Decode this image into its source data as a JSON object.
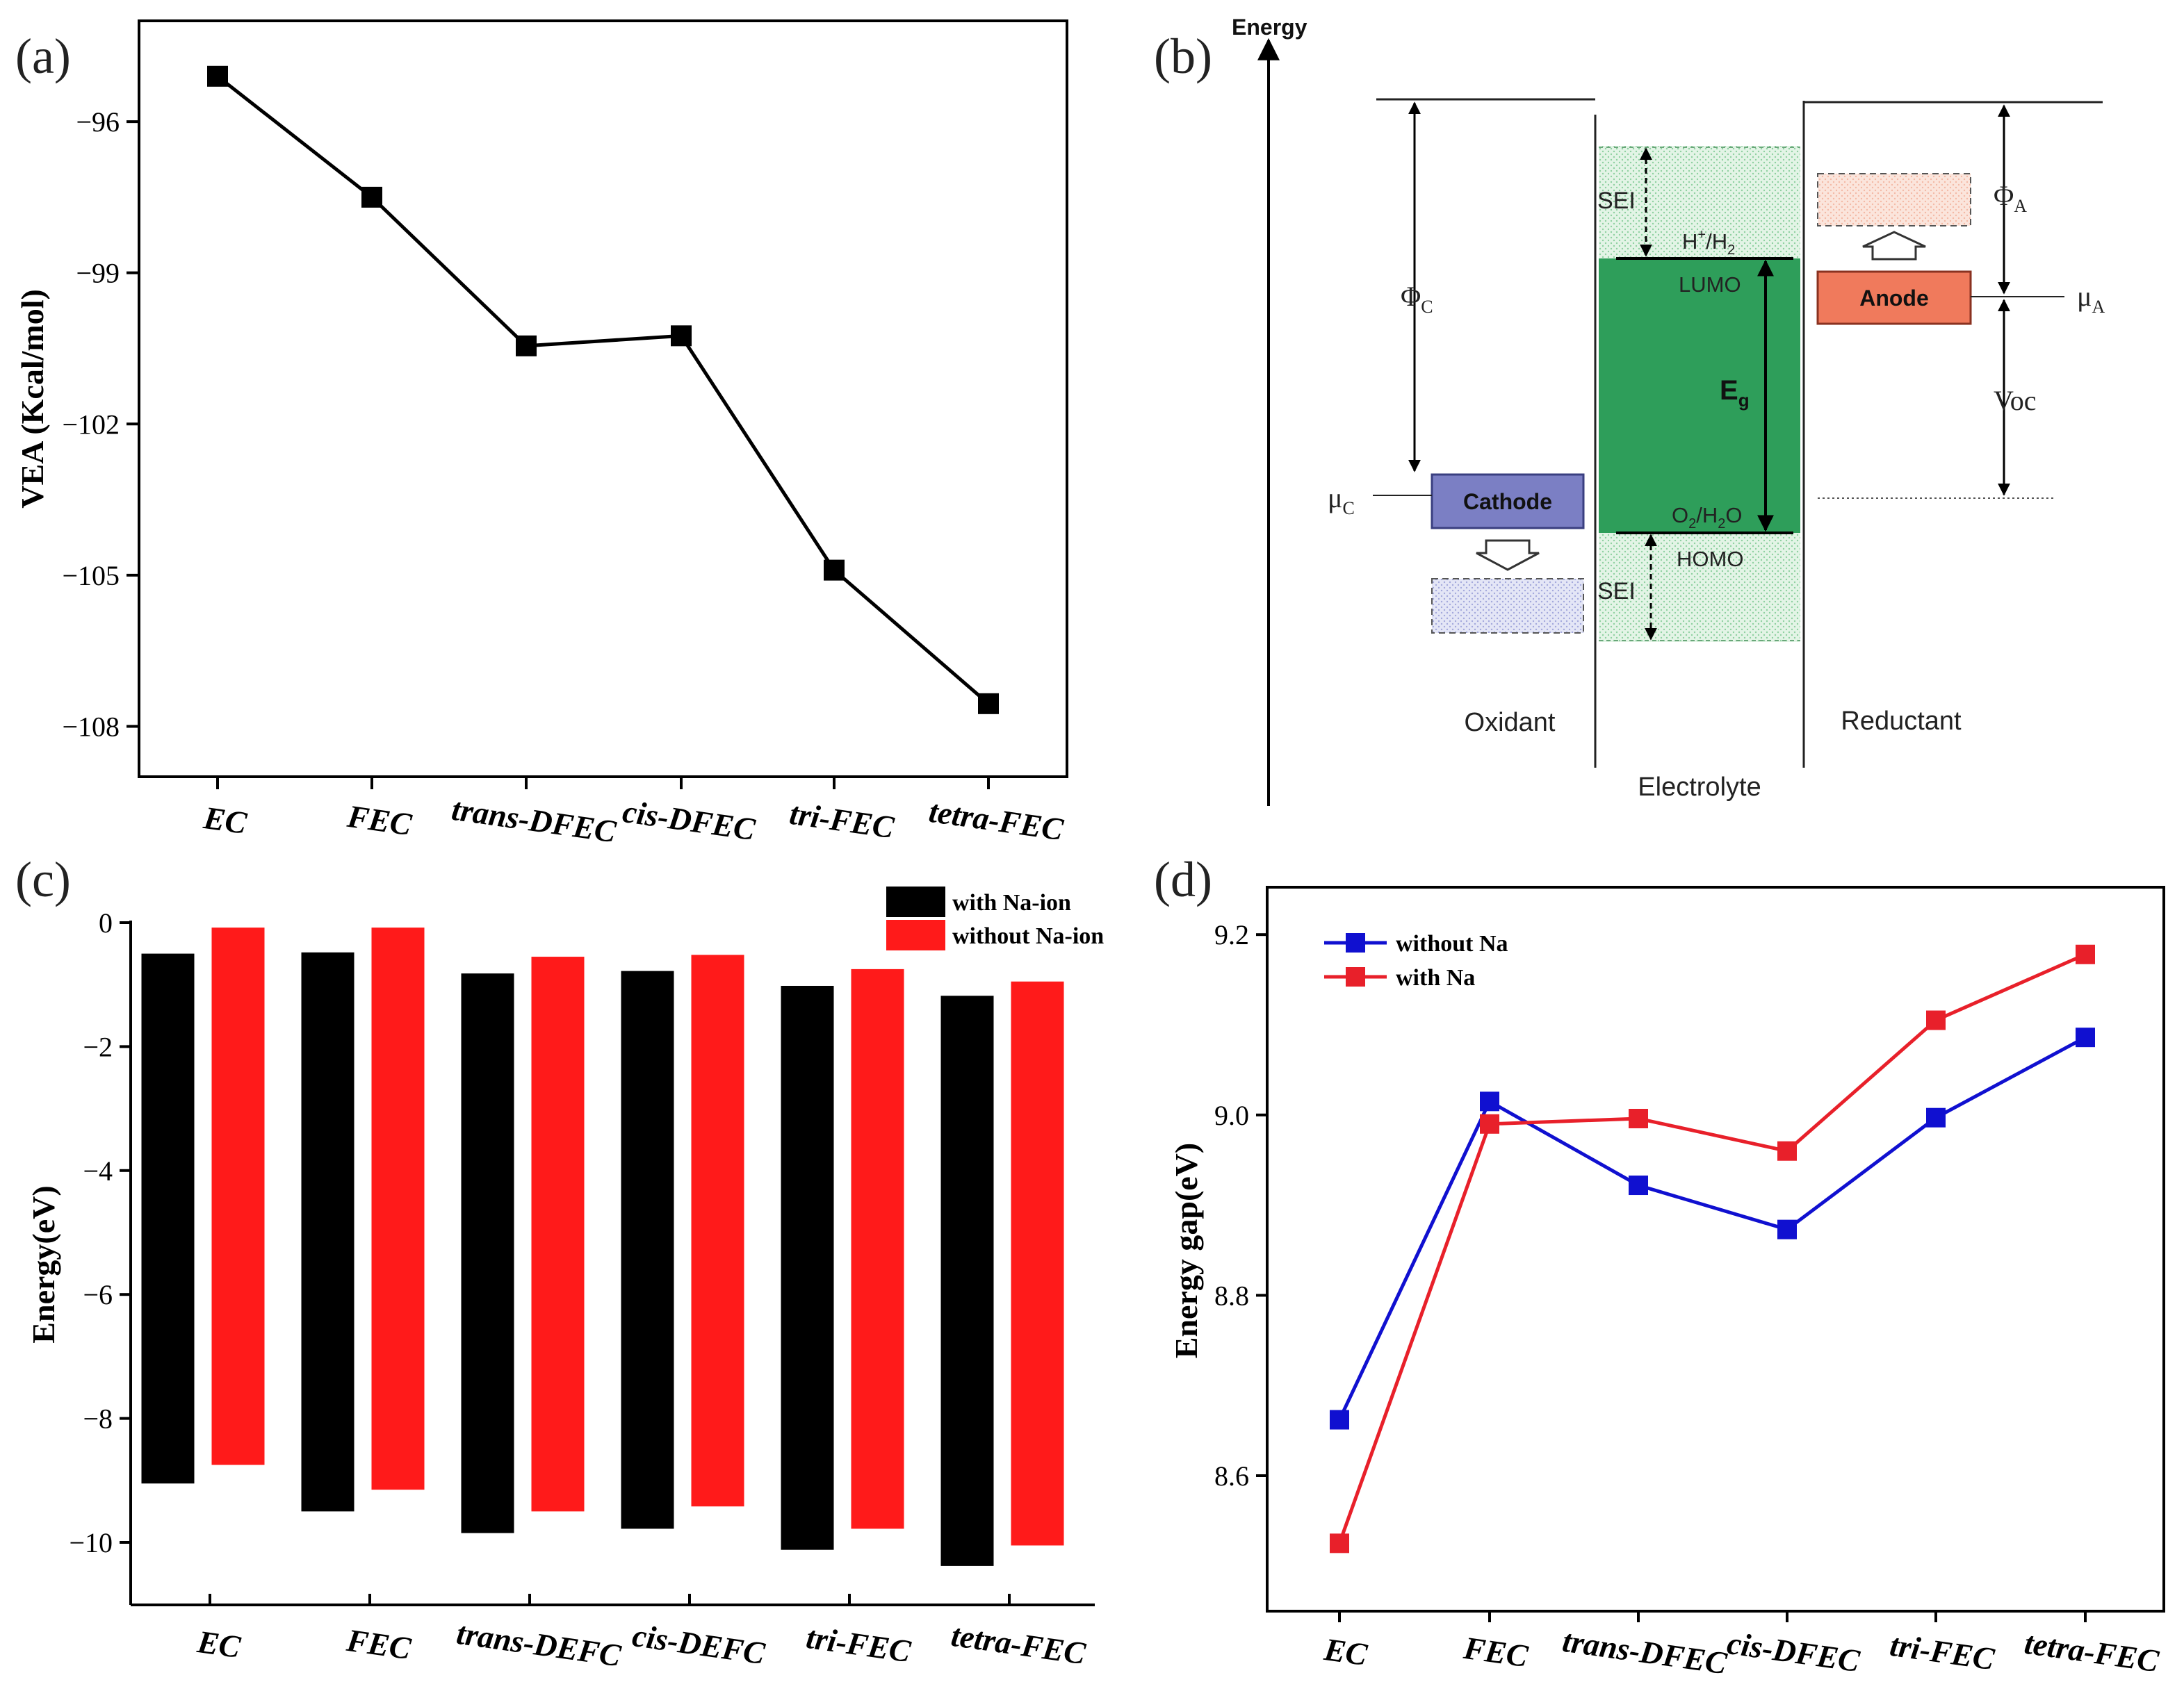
{
  "panels": {
    "a": "(a)",
    "b": "(b)",
    "c": "(c)",
    "d": "(d)"
  },
  "colors": {
    "black": "#000000",
    "red": "#ff1a1a",
    "blue": "#1010d0",
    "red_line": "#e8202a",
    "green": "#2e9e5a",
    "green_light": "#d8f0dc",
    "cathode": "#7b7fc4",
    "anode": "#f07a5c"
  },
  "chart_data": [
    {
      "id": "a",
      "type": "line",
      "categories": [
        "EC",
        "FEC",
        "trans-DFEC",
        "cis-DFEC",
        "tri-FEC",
        "tetra-FEC"
      ],
      "values": [
        -95.1,
        -97.5,
        -100.45,
        -100.25,
        -104.9,
        -107.55
      ],
      "ylabel": "VEA (Kcal/mol)",
      "xlabel": "",
      "ylim": [
        -109,
        -94
      ],
      "yticks": [
        -96,
        -99,
        -102,
        -105,
        -108
      ],
      "yticklabels": [
        "-96",
        "-99",
        "-102",
        "-105",
        "-108"
      ],
      "grid": false,
      "color": "#000000"
    },
    {
      "id": "c",
      "type": "bar",
      "categories": [
        "EC",
        "FEC",
        "trans-DEFC",
        "cis-DEFC",
        "tri-FEC",
        "tetra-FEC"
      ],
      "series": [
        {
          "name": "with Na-ion",
          "top": [
            -0.5,
            -0.48,
            -0.82,
            -0.78,
            -1.02,
            -1.18
          ],
          "bottom": [
            -9.05,
            -9.5,
            -9.85,
            -9.78,
            -10.12,
            -10.38
          ],
          "color": "#000000"
        },
        {
          "name": "without Na-ion",
          "top": [
            -0.08,
            -0.08,
            -0.55,
            -0.52,
            -0.75,
            -0.95
          ],
          "bottom": [
            -8.75,
            -9.15,
            -9.5,
            -9.42,
            -9.78,
            -10.05
          ],
          "color": "#ff1a1a"
        }
      ],
      "ylabel": "Energy(eV)",
      "xlabel": "",
      "ylim": [
        -11,
        0
      ],
      "yticks": [
        0,
        -2,
        -4,
        -6,
        -8,
        -10
      ],
      "yticklabels": [
        "0",
        "-2",
        "-4",
        "-6",
        "-8",
        "-10"
      ],
      "legend": "top-right",
      "grid": false
    },
    {
      "id": "d",
      "type": "line",
      "categories": [
        "EC",
        "FEC",
        "trans-DFEC",
        "cis-DFEC",
        "tri-FEC",
        "tetra-FEC"
      ],
      "series": [
        {
          "name": "without Na",
          "values": [
            8.662,
            9.015,
            8.922,
            8.873,
            8.997,
            9.086
          ],
          "color": "#1010d0"
        },
        {
          "name": "with Na",
          "values": [
            8.525,
            8.99,
            8.996,
            8.96,
            9.105,
            9.178
          ],
          "color": "#e8202a"
        }
      ],
      "ylabel": "Energy gap(eV)",
      "xlabel": "",
      "ylim": [
        8.48,
        9.25
      ],
      "yticks": [
        8.6,
        8.8,
        9.0,
        9.2
      ],
      "yticklabels": [
        "8.6",
        "8.8",
        "9.0",
        "9.2"
      ],
      "legend": "top-left",
      "grid": false
    }
  ],
  "diagram_b": {
    "energy_label": "Energy",
    "oxidant": "Oxidant",
    "electrolyte": "Electrolyte",
    "reductant": "Reductant",
    "cathode": "Cathode",
    "anode": "Anode",
    "lumo": "LUMO",
    "homo": "HOMO",
    "sei_top": "SEI",
    "sei_bottom": "SEI",
    "eg_main": "E",
    "eg_sub": "g",
    "h_label": "H",
    "h_sup": "+",
    "h_rest": "/H",
    "h_sub": "2",
    "o_label": "O",
    "o_sub": "2",
    "o_rest": "/H",
    "o_sub2": "2",
    "o_end": "O",
    "phi_c": "Φ",
    "phi_c_sub": "C",
    "phi_a": "Φ",
    "phi_a_sub": "A",
    "mu_c": "μ",
    "mu_c_sub": "C",
    "mu_a": "μ",
    "mu_a_sub": "A",
    "voc": "Voc"
  }
}
